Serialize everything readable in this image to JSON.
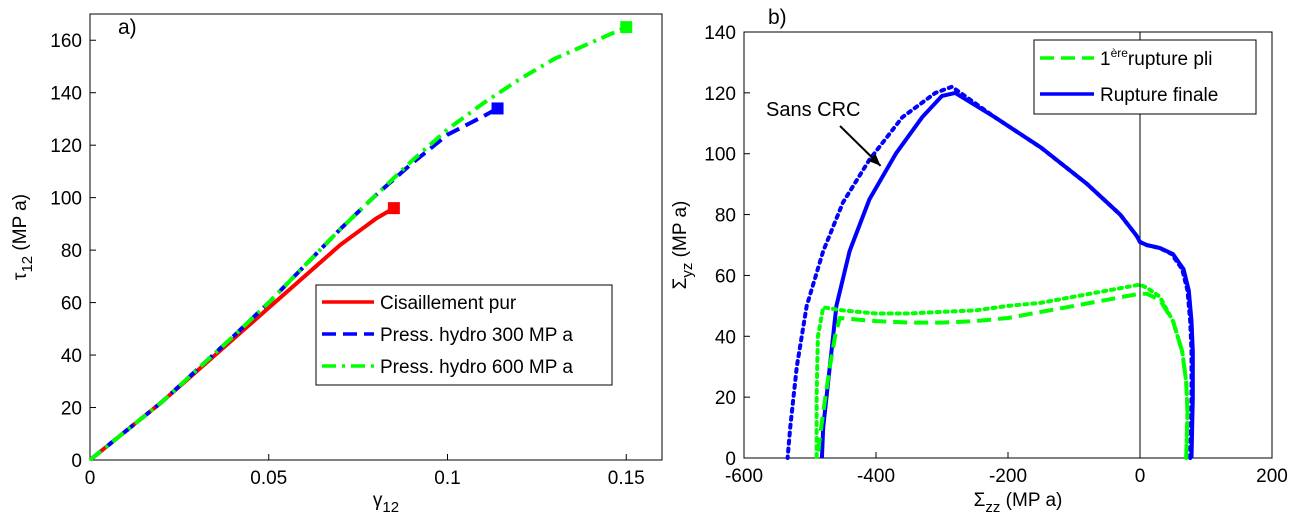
{
  "chart_data": [
    {
      "type": "line",
      "panel_label": "a)",
      "xlabel": "γ",
      "xlabel_sub": "12",
      "ylabel": "τ",
      "ylabel_sub": "12",
      "ylabel_unit": " (MP a)",
      "xlim": [
        0,
        0.16
      ],
      "ylim": [
        0,
        170
      ],
      "xticks": [
        0,
        0.05,
        0.1,
        0.15
      ],
      "xtick_labels": [
        "0",
        "0.05",
        "0.1",
        "0.15"
      ],
      "yticks": [
        0,
        20,
        40,
        60,
        80,
        100,
        120,
        140,
        160
      ],
      "ytick_labels": [
        "0",
        "20",
        "40",
        "60",
        "80",
        "100",
        "120",
        "140",
        "160"
      ],
      "grid": false,
      "legend_position": "bottom-right",
      "series": [
        {
          "name": "Cisaillement pur",
          "color": "#ff0000",
          "dash": "solid",
          "x": [
            0,
            0.01,
            0.02,
            0.03,
            0.04,
            0.05,
            0.06,
            0.065,
            0.07,
            0.075,
            0.08,
            0.085
          ],
          "y": [
            0,
            11,
            22,
            34,
            46,
            58,
            70,
            76,
            82,
            87,
            92,
            96
          ],
          "end_marker": {
            "x": 0.085,
            "y": 96
          }
        },
        {
          "name": "Press. hydro 300 MP a",
          "color": "#0000ff",
          "dash": "dashed",
          "x": [
            0,
            0.02,
            0.04,
            0.05,
            0.06,
            0.07,
            0.08,
            0.09,
            0.1,
            0.11,
            0.114
          ],
          "y": [
            0,
            22,
            47,
            60,
            74,
            88,
            101,
            113,
            124,
            131,
            134
          ],
          "end_marker": {
            "x": 0.114,
            "y": 134
          }
        },
        {
          "name": "Press. hydro 600 MP a",
          "color": "#00ff00",
          "dash": "dashdot",
          "x": [
            0,
            0.02,
            0.04,
            0.05,
            0.06,
            0.07,
            0.08,
            0.09,
            0.1,
            0.11,
            0.12,
            0.13,
            0.14,
            0.15
          ],
          "y": [
            0,
            22,
            47,
            60,
            74,
            88,
            101,
            114,
            126,
            136,
            145,
            153,
            159,
            165
          ],
          "end_marker": {
            "x": 0.15,
            "y": 165
          }
        }
      ]
    },
    {
      "type": "line",
      "panel_label": "b)",
      "xlabel": "Σ",
      "xlabel_sub": "zz",
      "xlabel_unit": " (MP a)",
      "ylabel": "Σ",
      "ylabel_sub": "yz",
      "ylabel_unit": " (MP a)",
      "xlim": [
        -600,
        200
      ],
      "ylim": [
        0,
        140
      ],
      "xticks": [
        -600,
        -400,
        -200,
        0,
        200
      ],
      "xtick_labels": [
        "-600",
        "-400",
        "-200",
        "0",
        "200"
      ],
      "yticks": [
        0,
        20,
        40,
        60,
        80,
        100,
        120,
        140
      ],
      "ytick_labels": [
        "0",
        "20",
        "40",
        "60",
        "80",
        "100",
        "120",
        "140"
      ],
      "grid": false,
      "legend_position": "top-right",
      "annotation": {
        "text": "Sans CRC",
        "arrow_to": [
          -393,
          96
        ]
      },
      "vertical_reference_line": 0,
      "legend": [
        {
          "name_prefix": "1",
          "name_sup": "ère",
          "name_rest": "rupture pli",
          "color": "#00ff00",
          "dash": "dashed"
        },
        {
          "name": "Rupture finale",
          "color": "#0000ff",
          "dash": "solid"
        }
      ],
      "series": [
        {
          "color": "#0000ff",
          "dash": "solid",
          "x": [
            78,
            80,
            80,
            78,
            74,
            66,
            50,
            30,
            10,
            0,
            -5,
            -30,
            -80,
            -150,
            -220,
            -280,
            -300,
            -330,
            -370,
            -410,
            -440,
            -460,
            -470,
            -480,
            -482
          ],
          "y": [
            0,
            20,
            35,
            45,
            55,
            62,
            67,
            69,
            70,
            71,
            73,
            80,
            90,
            102,
            112,
            120,
            119,
            112,
            100,
            85,
            68,
            50,
            30,
            10,
            0
          ]
        },
        {
          "color": "#0000ff",
          "dash": "dotted",
          "x": [
            76,
            78,
            78,
            76,
            72,
            64,
            48,
            30,
            10,
            0,
            -5,
            -30,
            -80,
            -150,
            -220,
            -285,
            -310,
            -360,
            -410,
            -450,
            -480,
            -505,
            -520,
            -530,
            -534
          ],
          "y": [
            0,
            20,
            35,
            45,
            55,
            62,
            67,
            69,
            70,
            71,
            73,
            80,
            90,
            102,
            112,
            122,
            120,
            112,
            98,
            84,
            68,
            50,
            30,
            10,
            0
          ]
        },
        {
          "color": "#00ff00",
          "dash": "dashed",
          "x": [
            70,
            72,
            70,
            64,
            50,
            30,
            10,
            0,
            -50,
            -100,
            -150,
            -200,
            -250,
            -300,
            -350,
            -400,
            -430,
            -455,
            -462,
            -470,
            -480,
            -486,
            -488
          ],
          "y": [
            0,
            15,
            25,
            35,
            45,
            52,
            54,
            54,
            52,
            50,
            48,
            46,
            45,
            44.5,
            44.5,
            45,
            45.5,
            46,
            40,
            30,
            15,
            5,
            0
          ]
        },
        {
          "color": "#00ff00",
          "dash": "dotted",
          "x": [
            70,
            72,
            70,
            64,
            50,
            30,
            10,
            0,
            -50,
            -100,
            -150,
            -200,
            -250,
            -300,
            -350,
            -400,
            -450,
            -480,
            -488,
            -490,
            -490
          ],
          "y": [
            0,
            15,
            25,
            35,
            45,
            53,
            56,
            57,
            55,
            53,
            51,
            50,
            48.5,
            48,
            47.5,
            47.5,
            48.5,
            49.5,
            40,
            20,
            0
          ]
        }
      ]
    }
  ]
}
